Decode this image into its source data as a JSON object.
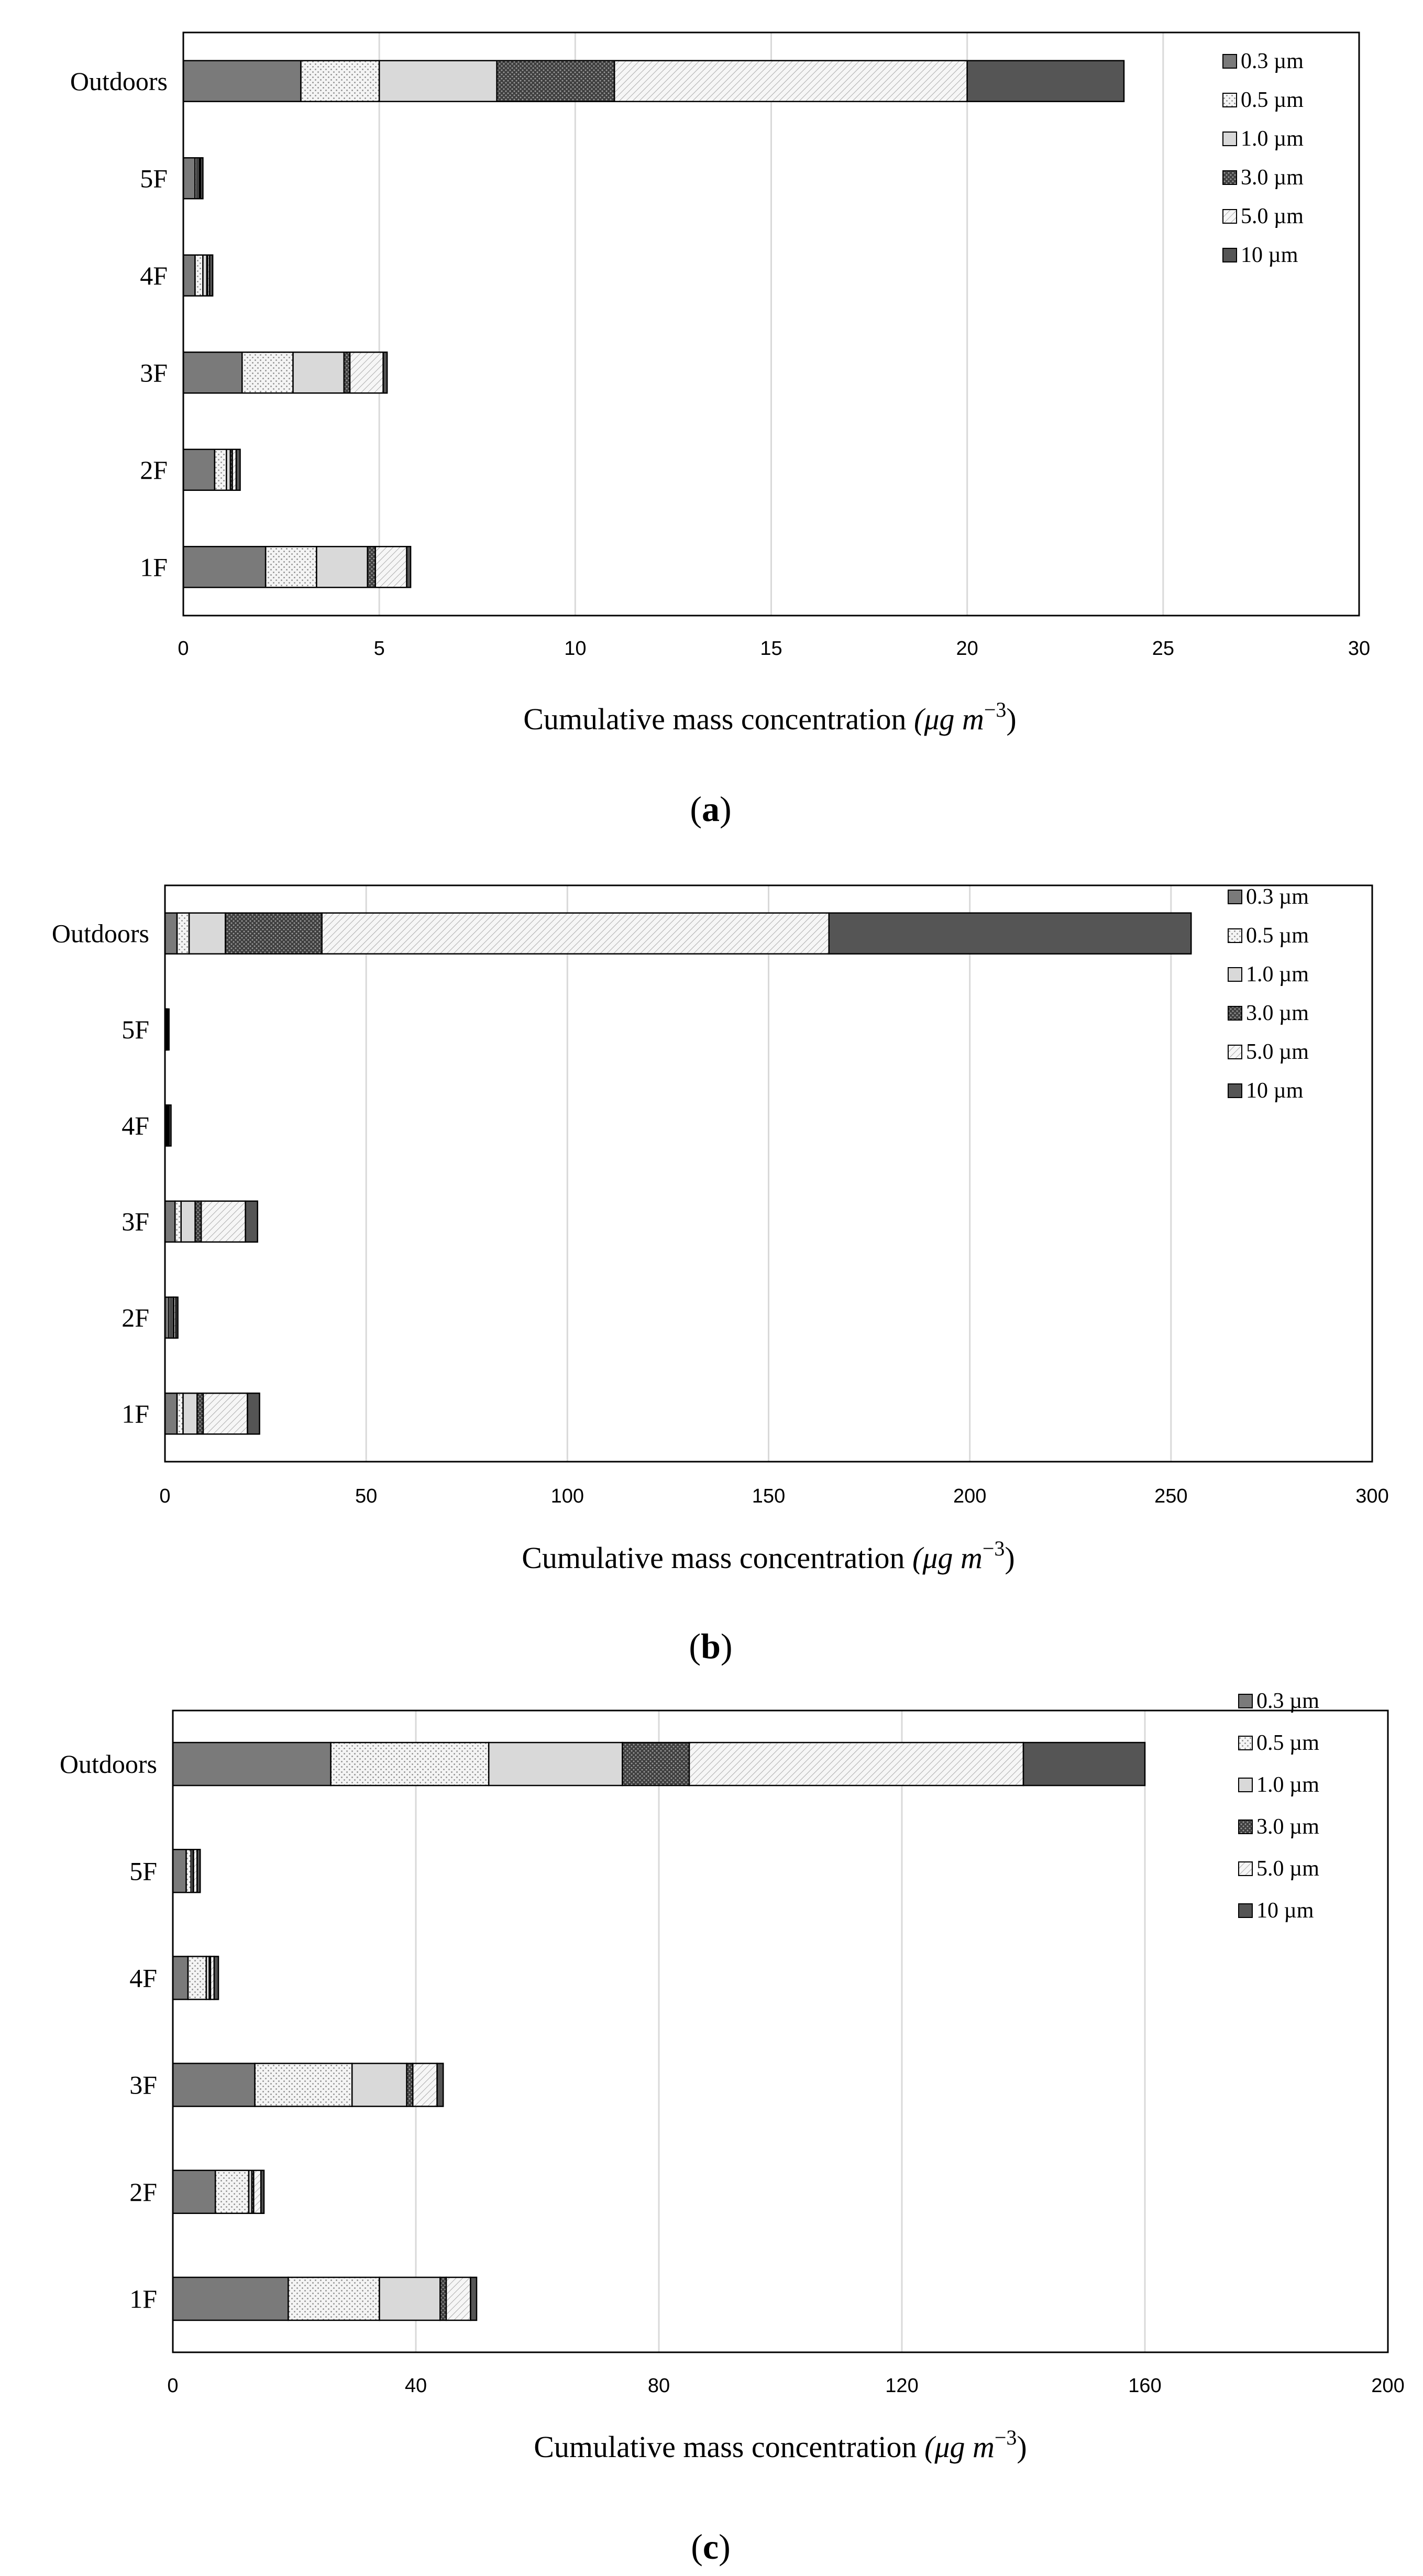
{
  "chart_data": [
    {
      "type": "bar",
      "orientation": "horizontal",
      "stacked": true,
      "panel": "a",
      "categories": [
        "Outdoors",
        "5F",
        "4F",
        "3F",
        "2F",
        "1F"
      ],
      "series": [
        {
          "name": "0.3 µm",
          "values": [
            3.0,
            0.3,
            0.3,
            1.5,
            0.8,
            2.1
          ]
        },
        {
          "name": "0.5 µm",
          "values": [
            2.0,
            0.05,
            0.2,
            1.3,
            0.3,
            1.3
          ]
        },
        {
          "name": "1.0 µm",
          "values": [
            3.0,
            0.05,
            0.1,
            1.3,
            0.1,
            1.3
          ]
        },
        {
          "name": "3.0 µm",
          "values": [
            3.0,
            0.02,
            0.02,
            0.15,
            0.05,
            0.2
          ]
        },
        {
          "name": "5.0 µm",
          "values": [
            9.0,
            0.02,
            0.05,
            0.85,
            0.1,
            0.8
          ]
        },
        {
          "name": "10 µm",
          "values": [
            4.0,
            0.06,
            0.08,
            0.1,
            0.1,
            0.1
          ]
        }
      ],
      "xlim": [
        0,
        30
      ],
      "xticks": [
        "0",
        "5",
        "10",
        "15",
        "20",
        "25",
        "30"
      ],
      "xlabel_text": "Cumulative mass concentration",
      "xlabel_unit_base": "(μg m",
      "xlabel_unit_exp": "−3",
      "xlabel_unit_close": ")",
      "grid": "vertical",
      "legend": "top-right"
    },
    {
      "type": "bar",
      "orientation": "horizontal",
      "stacked": true,
      "panel": "b",
      "categories": [
        "Outdoors",
        "5F",
        "4F",
        "3F",
        "2F",
        "1F"
      ],
      "series": [
        {
          "name": "0.3 µm",
          "values": [
            3.0,
            0.2,
            0.3,
            2.5,
            1.0,
            3.0
          ]
        },
        {
          "name": "0.5 µm",
          "values": [
            3.0,
            0.1,
            0.2,
            1.5,
            0.5,
            1.5
          ]
        },
        {
          "name": "1.0 µm",
          "values": [
            9.0,
            0.1,
            0.2,
            3.5,
            0.5,
            3.5
          ]
        },
        {
          "name": "3.0 µm",
          "values": [
            24.0,
            0.1,
            0.1,
            1.5,
            0.2,
            1.5
          ]
        },
        {
          "name": "5.0 µm",
          "values": [
            126.0,
            0.2,
            0.2,
            11.0,
            0.5,
            11.0
          ]
        },
        {
          "name": "10 µm",
          "values": [
            90.0,
            0.3,
            0.5,
            3.0,
            0.5,
            3.0
          ]
        }
      ],
      "xlim": [
        0,
        300
      ],
      "xticks": [
        "0",
        "50",
        "100",
        "150",
        "200",
        "250",
        "300"
      ],
      "xlabel_text": "Cumulative mass concentration",
      "xlabel_unit_base": "(μg m",
      "xlabel_unit_exp": "−3",
      "xlabel_unit_close": ")",
      "grid": "vertical",
      "legend": "top-right"
    },
    {
      "type": "bar",
      "orientation": "horizontal",
      "stacked": true,
      "panel": "c",
      "categories": [
        "Outdoors",
        "5F",
        "4F",
        "3F",
        "2F",
        "1F"
      ],
      "series": [
        {
          "name": "0.3 µm",
          "values": [
            26.0,
            2.2,
            2.5,
            13.5,
            7.0,
            19.0
          ]
        },
        {
          "name": "0.5 µm",
          "values": [
            26.0,
            0.8,
            3.0,
            16.0,
            5.5,
            15.0
          ]
        },
        {
          "name": "1.0 µm",
          "values": [
            22.0,
            0.3,
            0.5,
            9.0,
            0.5,
            10.0
          ]
        },
        {
          "name": "3.0 µm",
          "values": [
            11.0,
            0.1,
            0.2,
            1.0,
            0.3,
            1.0
          ]
        },
        {
          "name": "5.0 µm",
          "values": [
            55.0,
            0.6,
            0.6,
            4.0,
            1.2,
            4.0
          ]
        },
        {
          "name": "10 µm",
          "values": [
            20.0,
            0.5,
            0.7,
            1.0,
            0.5,
            1.0
          ]
        }
      ],
      "xlim": [
        0,
        200
      ],
      "xticks": [
        "0",
        "40",
        "80",
        "120",
        "160",
        "200"
      ],
      "xlabel_text": "Cumulative mass concentration",
      "xlabel_unit_base": "(μg m",
      "xlabel_unit_exp": "−3",
      "xlabel_unit_close": ")",
      "grid": "vertical",
      "legend": "top-right"
    }
  ],
  "captions": [
    {
      "open": "(",
      "letter": "a",
      "close": ")"
    },
    {
      "open": "(",
      "letter": "b",
      "close": ")"
    },
    {
      "open": "(",
      "letter": "c",
      "close": ")"
    }
  ],
  "series_styles": [
    {
      "name": "0.3 µm",
      "fill": "#7a7a7a",
      "pattern": "solid"
    },
    {
      "name": "0.5 µm",
      "fill": "#f2f2f2",
      "pattern": "dots"
    },
    {
      "name": "1.0 µm",
      "fill": "#d9d9d9",
      "pattern": "solid"
    },
    {
      "name": "3.0 µm",
      "fill": "#4d4d4d",
      "pattern": "dense-dots"
    },
    {
      "name": "5.0 µm",
      "fill": "#f5f5f5",
      "pattern": "diagonal"
    },
    {
      "name": "10 µm",
      "fill": "#555555",
      "pattern": "solid"
    }
  ],
  "colors": {
    "grid": "#d9d9d9",
    "border": "#000000",
    "bar_outline": "#000000"
  }
}
